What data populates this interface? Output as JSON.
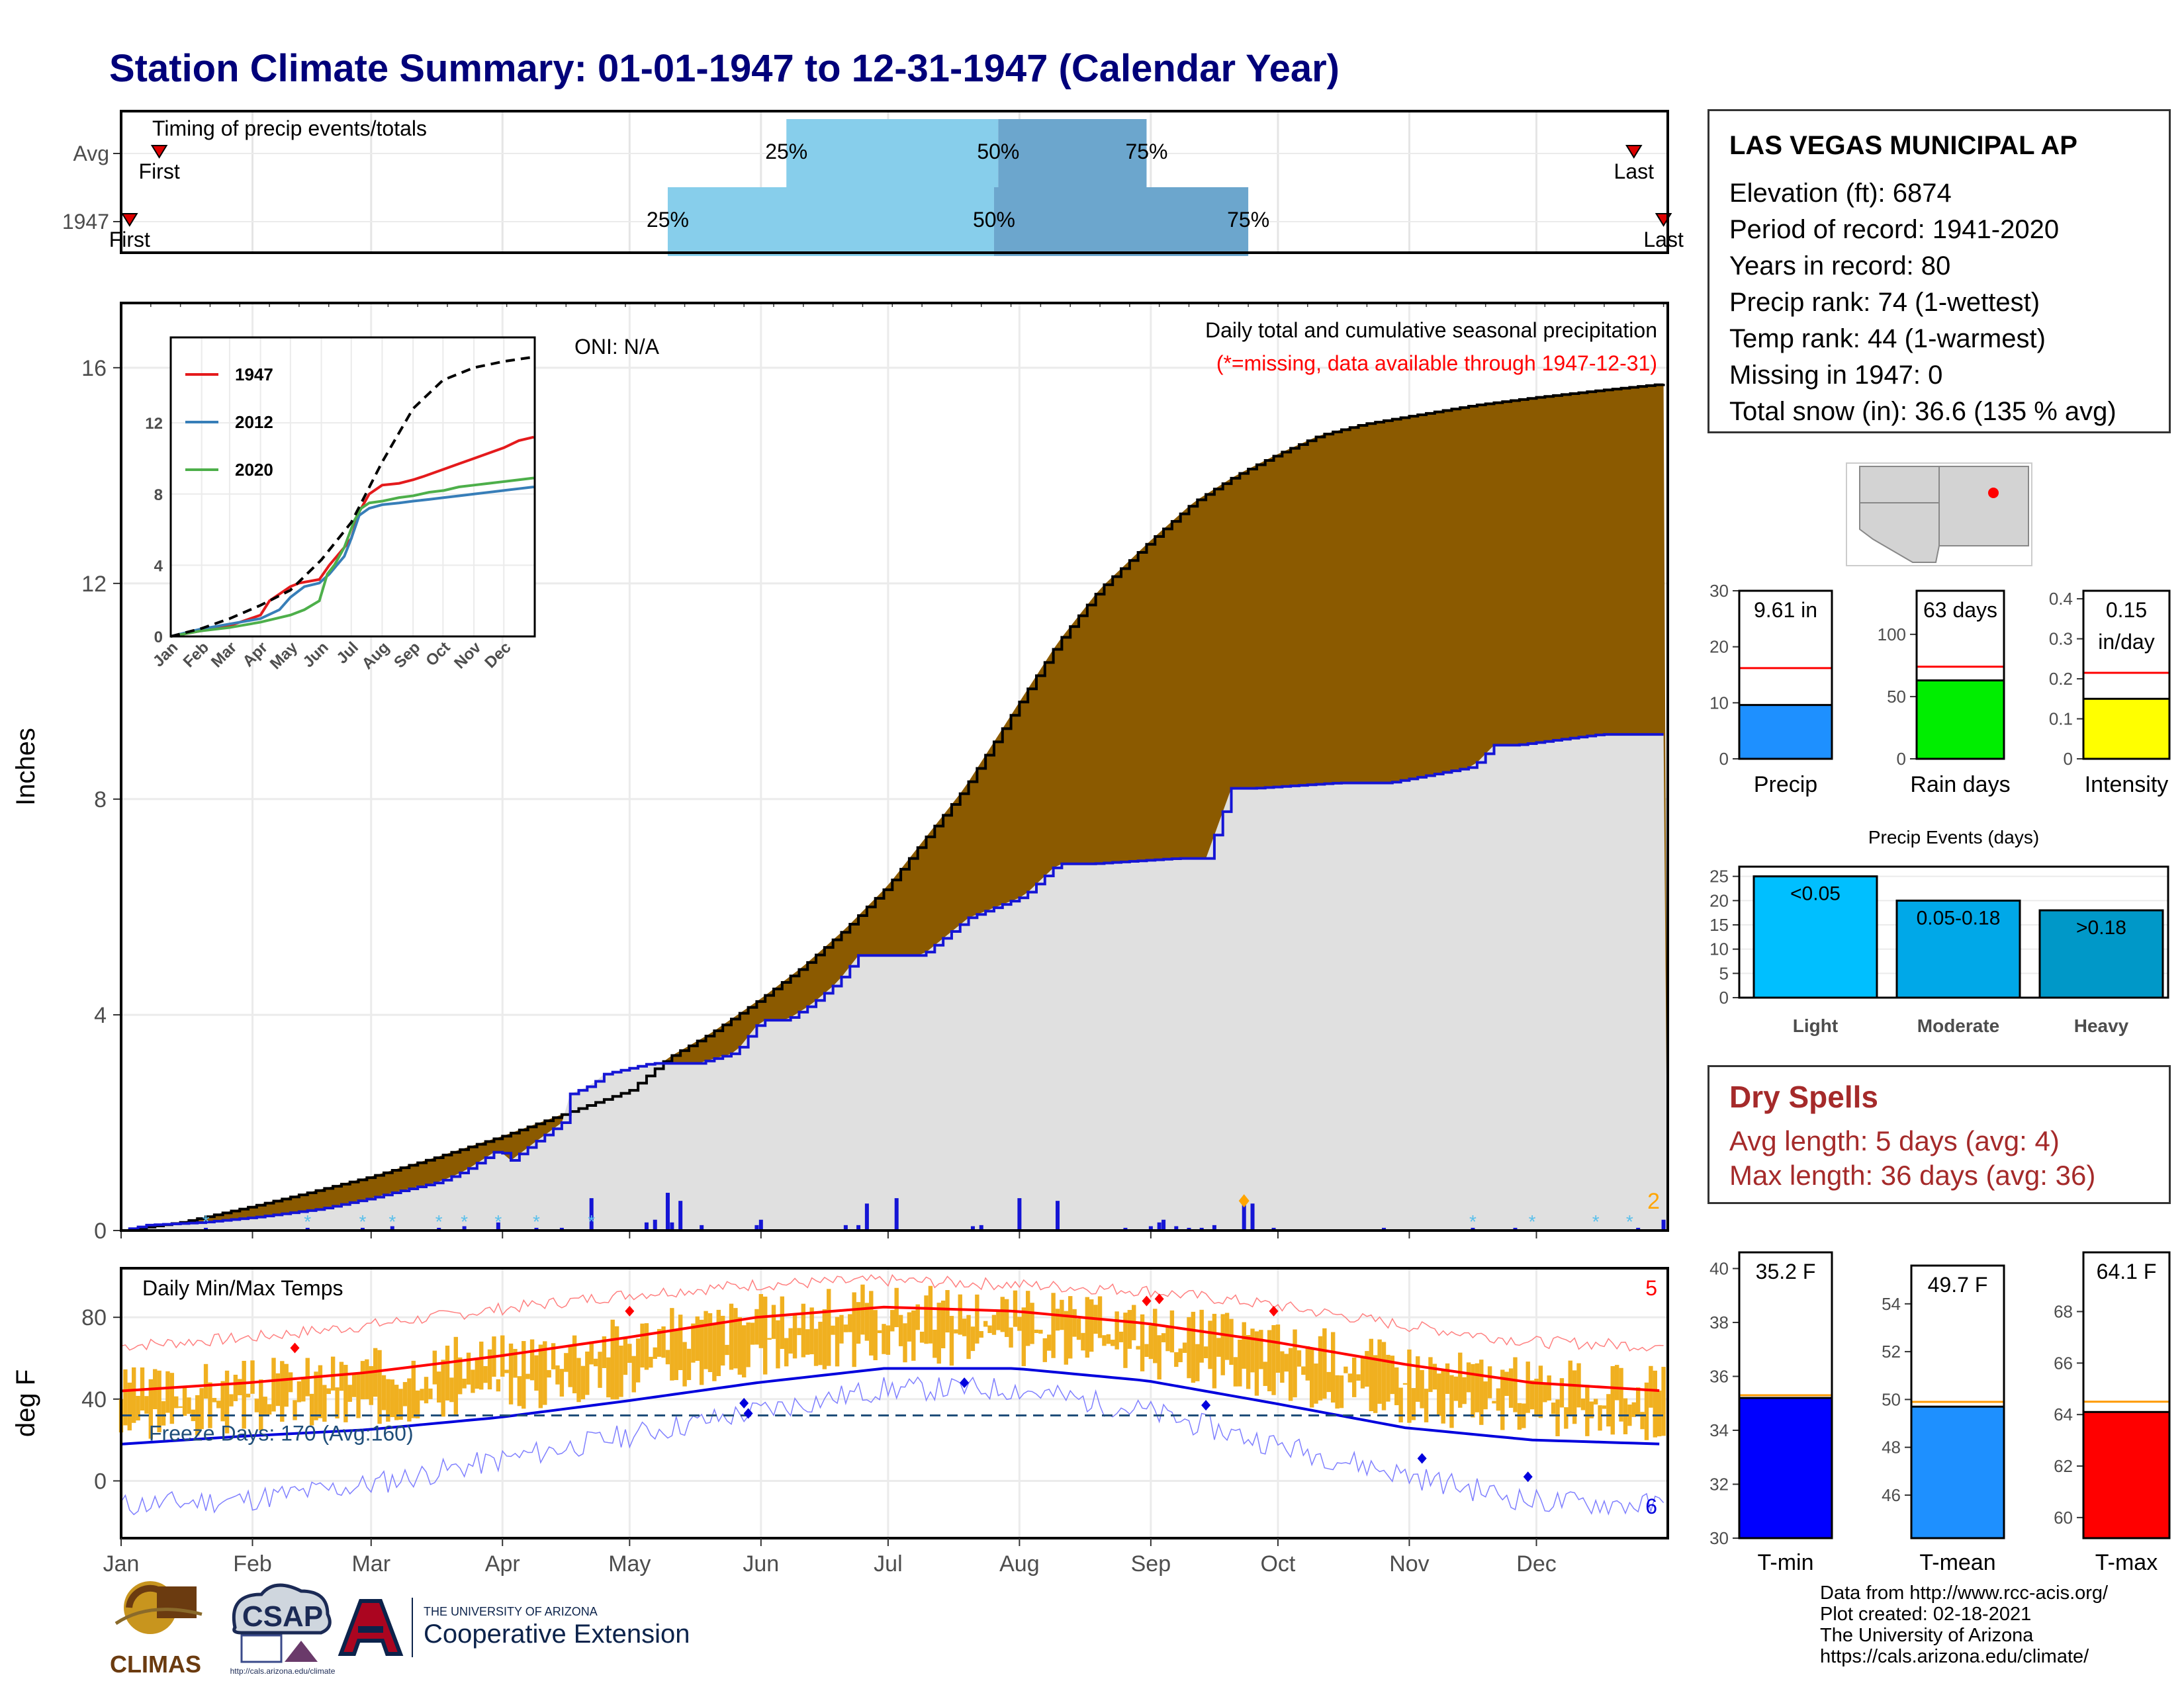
{
  "title": "Station Climate Summary: 01-01-1947 to 12-31-1947 (Calendar Year)",
  "station": {
    "name": "LAS VEGAS MUNICIPAL AP",
    "lines": [
      "Elevation (ft): 6874",
      "Period of record: 1941-2020",
      "Years in record: 80",
      "Precip rank: 74 (1-wettest)",
      "Temp rank: 44 (1-warmest)",
      "Missing in 1947: 0",
      "Total snow (in): 36.6 (135 % avg)"
    ]
  },
  "dry_spells": {
    "title": "Dry Spells",
    "avg": "Avg length: 5 days (avg: 4)",
    "max": "Max length: 36 days (avg: 36)"
  },
  "credits": [
    "Data from http://www.rcc-acis.org/",
    "Plot created: 02-18-2021",
    "The University of Arizona",
    "https://cals.arizona.edu/climate/"
  ],
  "logos": {
    "climas": "CLIMAS",
    "csap": "CSAP",
    "csap_url": "http://cals.arizona.edu/climate",
    "ua_line1": "THE UNIVERSITY OF ARIZONA",
    "ua_line2": "Cooperative Extension"
  },
  "colors": {
    "title": "#00007a",
    "precip_fill": "#8b5a00",
    "normal_fill": "#e0e0e0",
    "above_normal": "#1e8b1e",
    "cum_line": "#1515d5",
    "avg_line": "#ff0000",
    "temp_bar": "#f0b020",
    "timing_light": "#87ceeb",
    "timing_dark": "#6ca6cd",
    "dry_spells": "#a52a2a"
  },
  "chart_data": [
    {
      "id": "timing",
      "type": "bar",
      "title": "Timing of precip events/totals",
      "rows": [
        {
          "label": "Avg",
          "first": "Jan 10",
          "last": "Dec 24",
          "p25": "Jun 7",
          "p50": "Jul 27",
          "p75": "Aug 31",
          "first_label": "First",
          "last_label": "Last",
          "p25_label": "25%",
          "p50_label": "50%",
          "p75_label": "75%"
        },
        {
          "label": "1947",
          "first": "Jan 3",
          "last": "Dec 31",
          "p25": "May 10",
          "p50": "Jul 26",
          "p75": "Sep 24",
          "first_label": "First",
          "last_label": "Last",
          "p25_label": "25%",
          "p50_label": "50%",
          "p75_label": "75%"
        }
      ]
    },
    {
      "id": "precip",
      "type": "area",
      "title": "Daily total and cumulative seasonal precipitation",
      "subtitle": "(*=missing, data available through 1947-12-31)",
      "oni": "ONI: N/A",
      "ylabel": "Inches",
      "ylim": [
        0,
        17.2
      ],
      "yticks": [
        0,
        4,
        8,
        12,
        16
      ],
      "xticks": [
        "Jan",
        "Feb",
        "Mar",
        "Apr",
        "May",
        "Jun",
        "Jul",
        "Aug",
        "Sep",
        "Oct",
        "Nov",
        "Dec"
      ],
      "snow_count": "2",
      "normal_cumulative": {
        "day": [
          1,
          15,
          32,
          45,
          60,
          75,
          91,
          105,
          121,
          130,
          140,
          152,
          162,
          172,
          182,
          192,
          200,
          213,
          222,
          232,
          244,
          254,
          264,
          274,
          284,
          294,
          305,
          320,
          335,
          350,
          365
        ],
        "value": [
          0,
          0.15,
          0.45,
          0.7,
          1.0,
          1.35,
          1.75,
          2.15,
          2.6,
          3.2,
          3.65,
          4.3,
          4.9,
          5.6,
          6.4,
          7.4,
          8.2,
          9.8,
          10.9,
          11.9,
          12.8,
          13.5,
          14.0,
          14.4,
          14.75,
          14.95,
          15.1,
          15.3,
          15.45,
          15.58,
          15.7
        ]
      },
      "observed_cumulative": {
        "day": [
          1,
          7,
          20,
          33,
          48,
          60,
          65,
          76,
          82,
          90,
          93,
          98,
          105,
          106,
          112,
          115,
          126,
          137,
          146,
          152,
          158,
          164,
          170,
          175,
          190,
          201,
          214,
          218,
          222,
          230,
          250,
          257,
          263,
          268,
          288,
          300,
          320,
          325,
          330,
          350,
          355,
          365,
          366
        ],
        "value": [
          0,
          0.1,
          0.15,
          0.25,
          0.4,
          0.6,
          0.7,
          0.9,
          1.1,
          1.5,
          1.3,
          1.6,
          2.0,
          2.5,
          2.7,
          2.9,
          3.1,
          3.1,
          3.3,
          3.9,
          3.9,
          4.2,
          4.6,
          5.1,
          5.1,
          5.8,
          6.2,
          6.5,
          6.8,
          6.8,
          6.9,
          6.9,
          8.2,
          8.2,
          8.3,
          8.3,
          8.6,
          9.0,
          9.0,
          9.2,
          9.2,
          9.2,
          9.6
        ]
      },
      "daily_bars": [
        {
          "day": 21,
          "value": 0.05
        },
        {
          "day": 45,
          "value": 0.05
        },
        {
          "day": 58,
          "value": 0.05
        },
        {
          "day": 65,
          "value": 0.08
        },
        {
          "day": 76,
          "value": 0.05
        },
        {
          "day": 82,
          "value": 0.08
        },
        {
          "day": 90,
          "value": 0.15
        },
        {
          "day": 99,
          "value": 0.05
        },
        {
          "day": 105,
          "value": 0.05
        },
        {
          "day": 112,
          "value": 0.6
        },
        {
          "day": 125,
          "value": 0.15
        },
        {
          "day": 127,
          "value": 0.2
        },
        {
          "day": 130,
          "value": 0.7
        },
        {
          "day": 131,
          "value": 0.15
        },
        {
          "day": 133,
          "value": 0.55
        },
        {
          "day": 138,
          "value": 0.1
        },
        {
          "day": 151,
          "value": 0.1
        },
        {
          "day": 152,
          "value": 0.2
        },
        {
          "day": 172,
          "value": 0.1
        },
        {
          "day": 175,
          "value": 0.1
        },
        {
          "day": 177,
          "value": 0.5
        },
        {
          "day": 184,
          "value": 0.6
        },
        {
          "day": 202,
          "value": 0.08
        },
        {
          "day": 204,
          "value": 0.1
        },
        {
          "day": 213,
          "value": 0.6
        },
        {
          "day": 222,
          "value": 0.55
        },
        {
          "day": 238,
          "value": 0.05
        },
        {
          "day": 244,
          "value": 0.08
        },
        {
          "day": 246,
          "value": 0.15
        },
        {
          "day": 247,
          "value": 0.2
        },
        {
          "day": 250,
          "value": 0.08
        },
        {
          "day": 253,
          "value": 0.05
        },
        {
          "day": 256,
          "value": 0.05
        },
        {
          "day": 259,
          "value": 0.1
        },
        {
          "day": 273,
          "value": 0.05
        },
        {
          "day": 299,
          "value": 0.05
        },
        {
          "day": 320,
          "value": 0.05
        },
        {
          "day": 330,
          "value": 0.05
        },
        {
          "day": 359,
          "value": 0.05
        },
        {
          "day": 365,
          "value": 0.2
        },
        {
          "day": 266,
          "value": 0.55
        },
        {
          "day": 268,
          "value": 0.5
        }
      ],
      "inset": {
        "type": "line",
        "yticks": [
          0,
          4,
          8,
          12
        ],
        "xticks": [
          "Jan",
          "Feb",
          "Mar",
          "Apr",
          "May",
          "Jun",
          "Jul",
          "Aug",
          "Sep",
          "Oct",
          "Nov",
          "Dec"
        ],
        "series": [
          {
            "name": "1947",
            "color": "#e41a1c",
            "x": [
              1,
              30,
              60,
              91,
              100,
              121,
              130,
              150,
              160,
              175,
              182,
              190,
              195,
              200,
              213,
              230,
              244,
              255,
              265,
              275,
              290,
              305,
              320,
              335,
              350,
              365
            ],
            "y": [
              0,
              0.3,
              0.6,
              1.2,
              2.0,
              2.8,
              3.0,
              3.2,
              4.0,
              5.0,
              5.5,
              7.0,
              7.5,
              8.0,
              8.5,
              8.6,
              8.8,
              9.0,
              9.2,
              9.4,
              9.7,
              10.0,
              10.3,
              10.6,
              11.0,
              11.2
            ]
          },
          {
            "name": "2012",
            "color": "#377eb8",
            "x": [
              1,
              30,
              60,
              91,
              110,
              121,
              135,
              150,
              160,
              175,
              182,
              190,
              200,
              213,
              230,
              244,
              260,
              275,
              290,
              305,
              320,
              335,
              350,
              365
            ],
            "y": [
              0,
              0.4,
              0.7,
              1.0,
              1.5,
              2.2,
              2.8,
              3.0,
              3.5,
              4.5,
              5.5,
              6.8,
              7.2,
              7.4,
              7.5,
              7.6,
              7.7,
              7.8,
              7.9,
              8.0,
              8.1,
              8.2,
              8.3,
              8.4
            ]
          },
          {
            "name": "2020",
            "color": "#4daf4a",
            "x": [
              1,
              30,
              60,
              91,
              121,
              135,
              150,
              158,
              165,
              175,
              185,
              192,
              200,
              213,
              230,
              244,
              260,
              275,
              290,
              305,
              320,
              335,
              350,
              365
            ],
            "y": [
              0,
              0.3,
              0.5,
              0.8,
              1.2,
              1.5,
              2.0,
              3.5,
              4.0,
              5.0,
              6.5,
              7.2,
              7.5,
              7.6,
              7.8,
              7.9,
              8.1,
              8.2,
              8.4,
              8.5,
              8.6,
              8.7,
              8.8,
              8.9
            ]
          },
          {
            "name": "Avg",
            "color": "#000000",
            "x": [
              1,
              32,
              60,
              91,
              121,
              152,
              182,
              213,
              244,
              274,
              305,
              335,
              365
            ],
            "y": [
              0,
              0.45,
              1.0,
              1.75,
              2.6,
              4.3,
              6.4,
              9.8,
              12.8,
              14.4,
              15.1,
              15.45,
              15.7
            ]
          }
        ]
      }
    },
    {
      "id": "temps",
      "type": "bar",
      "title": "Daily Min/Max Temps",
      "ylabel": "deg F",
      "ylim": [
        -28,
        104
      ],
      "yticks": [
        0,
        40,
        80
      ],
      "freeze_label": "Freeze Days: 170 (Avg:160)",
      "freeze_level": 32,
      "record_high_count": "5",
      "record_low_count": "6",
      "avg_max": {
        "day": [
          1,
          31,
          59,
          90,
          120,
          151,
          181,
          212,
          243,
          273,
          304,
          334,
          365
        ],
        "value": [
          44,
          48,
          53,
          61,
          70,
          80,
          85,
          83,
          77,
          68,
          57,
          48,
          44
        ]
      },
      "avg_min": {
        "day": [
          1,
          31,
          59,
          90,
          120,
          151,
          181,
          212,
          243,
          273,
          304,
          334,
          365
        ],
        "value": [
          18,
          22,
          25,
          31,
          39,
          48,
          55,
          55,
          49,
          38,
          26,
          20,
          18
        ]
      },
      "rec_max": {
        "day": [
          1,
          31,
          59,
          90,
          120,
          151,
          181,
          212,
          243,
          273,
          304,
          334,
          365
        ],
        "value": [
          66,
          70,
          76,
          84,
          91,
          96,
          98,
          96,
          93,
          86,
          76,
          68,
          66
        ]
      },
      "rec_min": {
        "day": [
          1,
          31,
          59,
          90,
          120,
          151,
          181,
          212,
          243,
          273,
          304,
          334,
          365
        ],
        "value": [
          -12,
          -9,
          -2,
          10,
          22,
          34,
          45,
          45,
          34,
          18,
          3,
          -10,
          -12
        ]
      }
    },
    {
      "id": "summary-bars",
      "type": "bar",
      "panels": [
        {
          "label": "Precip",
          "value": 9.61,
          "avg": 16.2,
          "value_label": "9.61 in",
          "ylim": [
            0,
            30
          ],
          "yticks": [
            0,
            10,
            20,
            30
          ],
          "color": "#1e90ff"
        },
        {
          "label": "Rain days",
          "value": 63,
          "avg": 74,
          "value_label": "63 days",
          "ylim": [
            0,
            135
          ],
          "yticks": [
            0,
            50,
            100
          ],
          "color": "#00ee00"
        },
        {
          "label": "Intensity",
          "value": 0.15,
          "avg": 0.215,
          "value_label": "0.15 in/day",
          "ylim": [
            0,
            0.42
          ],
          "yticks": [
            0.0,
            0.1,
            0.2,
            0.3,
            0.4
          ],
          "color": "#ffff00"
        }
      ]
    },
    {
      "id": "precip-events",
      "type": "bar",
      "title": "Precip Events (days)",
      "categories": [
        "Light",
        "Moderate",
        "Heavy"
      ],
      "bar_labels": [
        "<0.05",
        "0.05-0.18",
        ">0.18"
      ],
      "values": [
        25,
        20,
        18
      ],
      "ylim": [
        0,
        27
      ],
      "yticks": [
        0,
        5,
        10,
        15,
        20,
        25
      ]
    },
    {
      "id": "temp-bars",
      "type": "bar",
      "panels": [
        {
          "label": "T-min",
          "value": 35.2,
          "avg": 35.3,
          "value_label": "35.2 F",
          "ylim": [
            30,
            40.6
          ],
          "yticks": [
            30,
            32,
            34,
            36,
            38,
            40
          ],
          "color": "#0000ff"
        },
        {
          "label": "T-mean",
          "value": 49.7,
          "avg": 49.9,
          "value_label": "49.7 F",
          "ylim": [
            44.2,
            55.6
          ],
          "yticks": [
            46,
            48,
            50,
            52,
            54
          ],
          "color": "#1e90ff"
        },
        {
          "label": "T-max",
          "value": 64.1,
          "avg": 64.5,
          "value_label": "64.1 F",
          "ylim": [
            59.2,
            70.3
          ],
          "yticks": [
            60,
            62,
            64,
            66,
            68
          ],
          "color": "#ff0000"
        }
      ]
    }
  ]
}
